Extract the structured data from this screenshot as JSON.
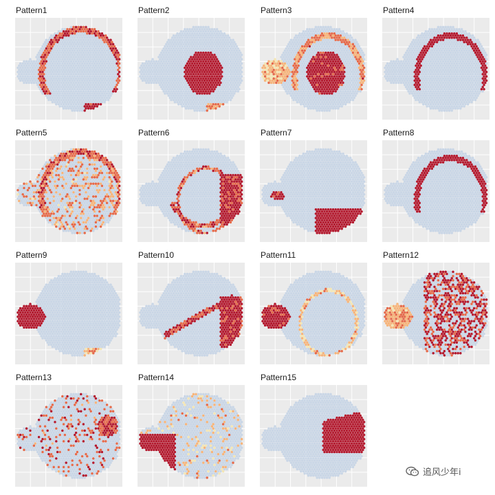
{
  "chart_data": {
    "type": "scatter",
    "description_of_marks": "hexagonal spot map of a sagittal mouse brain section, colored by pattern score (low = light blue-gray, high = dark red)",
    "grid": true,
    "colors": {
      "low": "#c9d6e6",
      "mid_low": "#f4e6b4",
      "mid": "#f6b47a",
      "mid_high": "#e56a4a",
      "high": "#b3192e",
      "panel_background": "#ebebeb",
      "gridline": "#ffffff"
    },
    "patterns": [
      {
        "title": "Pattern1",
        "regions": [
          {
            "zone": "cortex_outer",
            "level": 0.75
          },
          {
            "zone": "ventral_bottom",
            "level": 0.9
          }
        ]
      },
      {
        "title": "Pattern2",
        "regions": [
          {
            "zone": "center_blob",
            "level": 0.95
          },
          {
            "zone": "ventral_bottom",
            "level": 0.6
          }
        ]
      },
      {
        "title": "Pattern3",
        "regions": [
          {
            "zone": "center_blob",
            "level": 0.9
          },
          {
            "zone": "cortex_mid",
            "level": 0.6
          },
          {
            "zone": "olfactory",
            "level": 0.45
          }
        ]
      },
      {
        "title": "Pattern4",
        "regions": [
          {
            "zone": "cortex_mid",
            "level": 0.95
          }
        ]
      },
      {
        "title": "Pattern5",
        "regions": [
          {
            "zone": "cortex_outer",
            "level": 0.7
          },
          {
            "zone": "scatter_all",
            "level": 0.55
          }
        ]
      },
      {
        "title": "Pattern6",
        "regions": [
          {
            "zone": "cortex_inner",
            "level": 0.7
          },
          {
            "zone": "right_lobes",
            "level": 0.85
          },
          {
            "zone": "ventral_curve",
            "level": 0.7
          }
        ]
      },
      {
        "title": "Pattern7",
        "regions": [
          {
            "zone": "ventral_right",
            "level": 0.95
          },
          {
            "zone": "olfactory_small",
            "level": 0.9
          }
        ]
      },
      {
        "title": "Pattern8",
        "regions": [
          {
            "zone": "cortex_mid",
            "level": 0.95
          }
        ]
      },
      {
        "title": "Pattern9",
        "regions": [
          {
            "zone": "olfactory",
            "level": 0.95
          },
          {
            "zone": "ventral_bottom",
            "level": 0.5
          }
        ]
      },
      {
        "title": "Pattern10",
        "regions": [
          {
            "zone": "right_lobes",
            "level": 0.9
          },
          {
            "zone": "streak",
            "level": 0.8
          }
        ]
      },
      {
        "title": "Pattern11",
        "regions": [
          {
            "zone": "olfactory",
            "level": 0.9
          },
          {
            "zone": "cortex_inner",
            "level": 0.45
          }
        ]
      },
      {
        "title": "Pattern12",
        "regions": [
          {
            "zone": "scatter_right",
            "level": 0.8
          },
          {
            "zone": "olfactory",
            "level": 0.55
          }
        ]
      },
      {
        "title": "Pattern13",
        "regions": [
          {
            "zone": "scatter_edge",
            "level": 0.7
          },
          {
            "zone": "right_cluster",
            "level": 0.75
          }
        ]
      },
      {
        "title": "Pattern14",
        "regions": [
          {
            "zone": "olfactory_lower",
            "level": 0.95
          },
          {
            "zone": "scatter_edge",
            "level": 0.45
          }
        ]
      },
      {
        "title": "Pattern15",
        "regions": [
          {
            "zone": "right_wedge",
            "level": 0.95
          }
        ]
      }
    ]
  },
  "watermark": {
    "text": "追风少年i",
    "icon": "wechat-icon"
  }
}
